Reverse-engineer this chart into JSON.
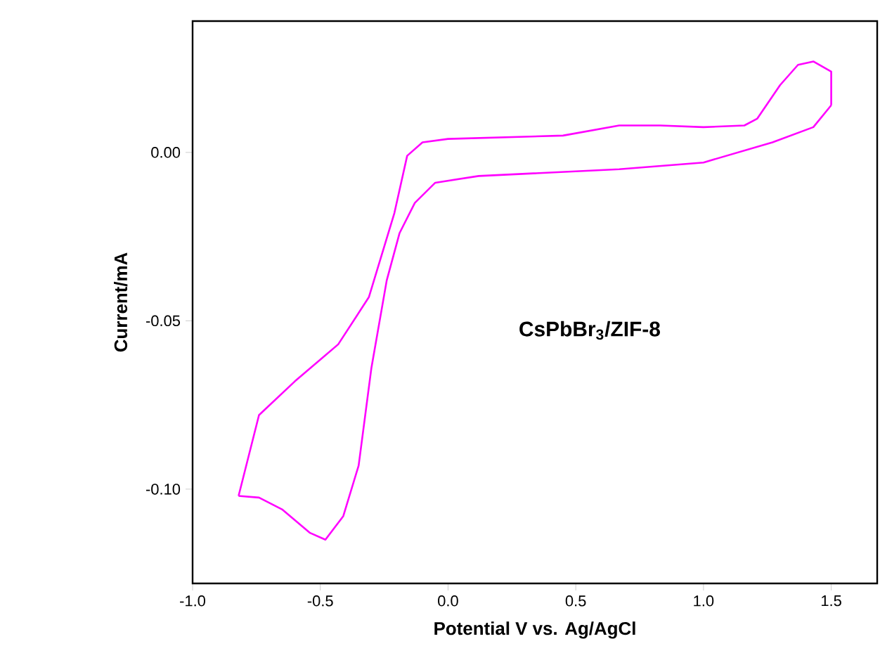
{
  "chart_data": {
    "type": "line",
    "xlabel": "Potential V vs. Ag/AgCl",
    "ylabel": "Current/mA",
    "annotations": [
      "CsPbBr$_{3}$/ZIF-8"
    ],
    "xlim": [
      -1.0,
      1.68
    ],
    "ylim": [
      -0.128,
      0.039
    ],
    "xticks": [
      {
        "value": -1.0,
        "label": "-1.0"
      },
      {
        "value": -0.5,
        "label": "-0.5"
      },
      {
        "value": 0,
        "label": "0.0"
      },
      {
        "value": 0.5,
        "label": "0.5"
      },
      {
        "value": 1.0,
        "label": "1.0"
      },
      {
        "value": 1.5,
        "label": "1.5"
      }
    ],
    "yticks": [
      {
        "value": 0,
        "label": "0.00"
      },
      {
        "value": -0.05,
        "label": "-0.05"
      },
      {
        "value": -0.1,
        "label": "-0.10"
      }
    ],
    "series": [
      {
        "color": "#ff00ff",
        "x": [
          -0.82,
          -0.74,
          -0.6,
          -0.43,
          -0.31,
          -0.21,
          -0.16,
          -0.1,
          0.0,
          0.45,
          0.67,
          0.83,
          1.0,
          1.16,
          1.21,
          1.3,
          1.37,
          1.43,
          1.5,
          1.5
        ],
        "values": [
          -0.102,
          -0.078,
          -0.068,
          -0.057,
          -0.043,
          -0.018,
          -0.001,
          0.003,
          0.004,
          0.005,
          0.008,
          0.008,
          0.0075,
          0.008,
          0.01,
          0.02,
          0.026,
          0.027,
          0.024,
          0.014
        ]
      },
      {
        "color": "#ff00ff",
        "x": [
          -0.82,
          -0.74,
          -0.65,
          -0.54,
          -0.48,
          -0.41,
          -0.35,
          -0.3,
          -0.24,
          -0.19,
          -0.13,
          -0.05,
          0.12,
          0.67,
          1.0,
          1.27,
          1.43,
          1.5
        ],
        "values": [
          -0.102,
          -0.1025,
          -0.106,
          -0.113,
          -0.115,
          -0.108,
          -0.093,
          -0.064,
          -0.038,
          -0.024,
          -0.015,
          -0.009,
          -0.007,
          -0.005,
          -0.003,
          0.003,
          0.0075,
          0.014
        ]
      }
    ]
  }
}
